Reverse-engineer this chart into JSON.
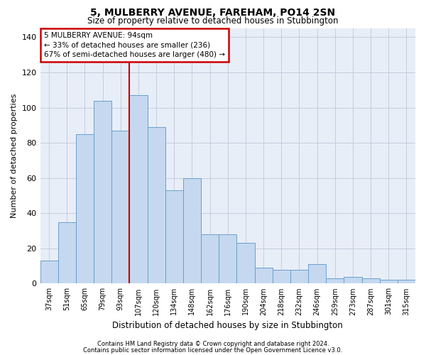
{
  "title1": "5, MULBERRY AVENUE, FAREHAM, PO14 2SN",
  "title2": "Size of property relative to detached houses in Stubbington",
  "xlabel": "Distribution of detached houses by size in Stubbington",
  "ylabel": "Number of detached properties",
  "categories": [
    "37sqm",
    "51sqm",
    "65sqm",
    "79sqm",
    "93sqm",
    "107sqm",
    "120sqm",
    "134sqm",
    "148sqm",
    "162sqm",
    "176sqm",
    "190sqm",
    "204sqm",
    "218sqm",
    "232sqm",
    "246sqm",
    "259sqm",
    "273sqm",
    "287sqm",
    "301sqm",
    "315sqm"
  ],
  "values": [
    13,
    35,
    85,
    104,
    87,
    107,
    89,
    53,
    60,
    28,
    28,
    23,
    9,
    8,
    8,
    11,
    3,
    4,
    3,
    2,
    2
  ],
  "bar_color": "#c5d8ef",
  "bar_edge_color": "#6aa0cc",
  "vline_idx": 4,
  "vline_color": "#cc0000",
  "annotation_line1": "5 MULBERRY AVENUE: 94sqm",
  "annotation_line2": "← 33% of detached houses are smaller (236)",
  "annotation_line3": "67% of semi-detached houses are larger (480) →",
  "annotation_box_color": "#ffffff",
  "annotation_box_edge": "#cc0000",
  "ylim": [
    0,
    145
  ],
  "yticks": [
    0,
    20,
    40,
    60,
    80,
    100,
    120,
    140
  ],
  "bg_color": "#e8eef8",
  "footer1": "Contains HM Land Registry data © Crown copyright and database right 2024.",
  "footer2": "Contains public sector information licensed under the Open Government Licence v3.0."
}
